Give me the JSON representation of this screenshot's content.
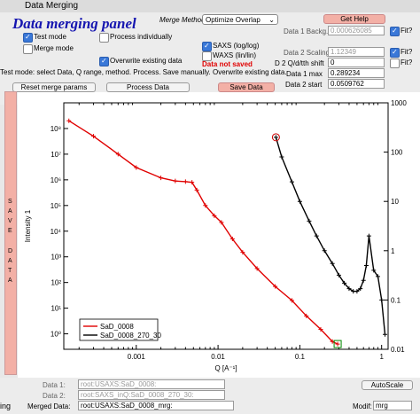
{
  "window": {
    "title": "Data Merging"
  },
  "panel": {
    "title": "Data merging  panel",
    "merge_method_label": "Merge Method",
    "merge_method_value": "Optimize Overlap",
    "test_mode": "Test mode",
    "merge_mode": "Merge mode",
    "process_individually": "Process individually",
    "overwrite_existing": "Overwrite existing data",
    "saxs": "SAXS (log/log)",
    "waxs": "WAXS (lin/lin)",
    "data_not_saved": "Data not saved",
    "get_help": "Get Help",
    "data1_backg_label": "Data 1 Backg.",
    "data1_backg_value": "0.000626085",
    "data2_scaling_label": "Data 2 Scaling",
    "data2_scaling_value": "1.12349",
    "d2_shift_label": "D 2 Q/d/tth shift",
    "d2_shift_value": "0",
    "data1_max_label": "Data 1 max",
    "data1_max_value": "0.289234",
    "data2_start_label": "Data 2 start",
    "data2_start_value": "0.0509762",
    "fit1": "Fit?",
    "fit2": "Fit?",
    "fit3": "Fit?",
    "hint": "Test mode: select Data, Q range, method. Process. Save manually. Overwrite existing data.",
    "reset_btn": "Reset merge params",
    "process_btn": "Process Data",
    "save_btn": "Save Data",
    "save_side_1": "S A V E",
    "save_side_2": "D A T A"
  },
  "chart_data": {
    "type": "line",
    "xlabel": "Q [A⁻¹]",
    "ylabel": "Intensity 1",
    "y2label": "",
    "x_log": true,
    "y_log": true,
    "xlim": [
      0.00013,
      1.2
    ],
    "ylim_left": [
      0.25,
      1000000000.0
    ],
    "ylim_right": [
      0.01,
      1000
    ],
    "x_ticks": [
      "0.001",
      "0.01",
      "0.1",
      "1"
    ],
    "y_left_ticks": [
      "10⁰",
      "10¹",
      "10²",
      "10³",
      "10⁴",
      "10⁵",
      "10⁶",
      "10⁷",
      "10⁸"
    ],
    "y_right_ticks": [
      "0.01",
      "0.1",
      "1",
      "10",
      "100",
      "1000"
    ],
    "series": [
      {
        "name": "SaD_0008",
        "color": "#e00000",
        "axis": "left",
        "x": [
          0.00015,
          0.0003,
          0.0006,
          0.001,
          0.002,
          0.003,
          0.004,
          0.0048,
          0.0055,
          0.007,
          0.009,
          0.011,
          0.015,
          0.02,
          0.03,
          0.05,
          0.08,
          0.12,
          0.18,
          0.25,
          0.29
        ],
        "y": [
          200000000.0,
          50000000.0,
          10000000.0,
          3000000.0,
          1200000.0,
          900000.0,
          850000.0,
          800000.0,
          400000.0,
          100000.0,
          40000.0,
          22000.0,
          5000.0,
          1500.0,
          350,
          70,
          20,
          5,
          1.5,
          0.5,
          0.4
        ]
      },
      {
        "name": "SaD_0008_270_30",
        "color": "#000000",
        "axis": "right",
        "x": [
          0.051,
          0.06,
          0.08,
          0.1,
          0.13,
          0.16,
          0.2,
          0.25,
          0.3,
          0.35,
          0.4,
          0.45,
          0.5,
          0.55,
          0.6,
          0.65,
          0.7,
          0.8,
          0.9,
          1.0,
          1.1
        ],
        "y": [
          200,
          80,
          25,
          10,
          4,
          2,
          1,
          0.55,
          0.32,
          0.22,
          0.17,
          0.15,
          0.15,
          0.17,
          0.25,
          0.5,
          2,
          0.4,
          0.3,
          0.1,
          0.02
        ]
      }
    ],
    "legend": {
      "placement": "bottom-left"
    }
  },
  "bottom": {
    "data1_label": "Data 1:",
    "data1_value": "root:USAXS:SaD_0008:",
    "data2_label": "Data 2:",
    "data2_value": "root:SAXS_inQ:SaD_0008_270_30:",
    "merged_label": "Merged Data:",
    "merged_value": "root:USAXS:SaD_0008_mrg:",
    "modif_label": "Modif:",
    "modif_value": "mrg",
    "autoscale": "AutoScale",
    "left_label": "ing"
  }
}
